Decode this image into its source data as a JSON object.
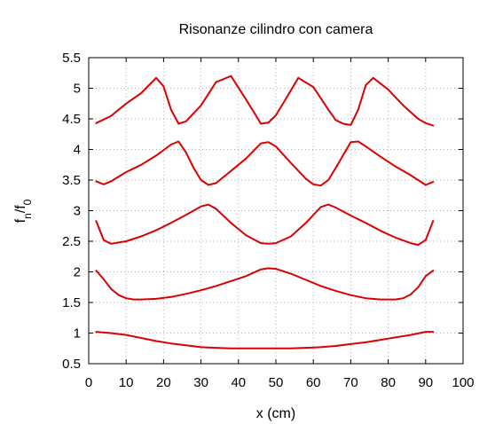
{
  "chart_data": {
    "type": "line",
    "title": "Risonanze cilindro con camera",
    "xlabel": "x (cm)",
    "ylabel": {
      "main": "f",
      "sub_n": "n",
      "sep": "/f",
      "sub_0": "0"
    },
    "xlim": [
      0,
      100
    ],
    "ylim": [
      0.5,
      5.5
    ],
    "xticks": [
      "0",
      "10",
      "20",
      "30",
      "40",
      "50",
      "60",
      "70",
      "80",
      "90",
      "100"
    ],
    "yticks": [
      "0.5",
      "1",
      "1.5",
      "2",
      "2.5",
      "3",
      "3.5",
      "4",
      "4.5",
      "5",
      "5.5"
    ],
    "grid": true,
    "legend": "none",
    "line_color": "#dd0000",
    "series": [
      {
        "x": [
          2,
          6,
          10,
          14,
          18,
          22,
          26,
          30,
          34,
          38,
          42,
          46,
          50,
          54,
          58,
          62,
          66,
          70,
          74,
          78,
          82,
          86,
          90,
          92
        ],
        "y": [
          1.02,
          1.0,
          0.97,
          0.92,
          0.87,
          0.83,
          0.8,
          0.77,
          0.76,
          0.75,
          0.75,
          0.75,
          0.75,
          0.75,
          0.76,
          0.77,
          0.79,
          0.82,
          0.85,
          0.89,
          0.93,
          0.97,
          1.02,
          1.02
        ]
      },
      {
        "x": [
          2,
          4,
          6,
          8,
          10,
          12,
          14,
          18,
          22,
          26,
          30,
          34,
          38,
          42,
          46,
          48,
          50,
          54,
          58,
          62,
          66,
          70,
          74,
          78,
          82,
          84,
          86,
          88,
          90,
          92
        ],
        "y": [
          2.02,
          1.88,
          1.72,
          1.62,
          1.57,
          1.55,
          1.55,
          1.56,
          1.59,
          1.64,
          1.7,
          1.77,
          1.85,
          1.93,
          2.04,
          2.06,
          2.05,
          1.97,
          1.87,
          1.77,
          1.69,
          1.62,
          1.57,
          1.55,
          1.55,
          1.57,
          1.63,
          1.75,
          1.93,
          2.02
        ]
      },
      {
        "x": [
          2,
          4,
          6,
          10,
          14,
          18,
          22,
          26,
          30,
          32,
          34,
          38,
          42,
          46,
          48,
          50,
          54,
          58,
          62,
          64,
          66,
          70,
          74,
          78,
          82,
          86,
          88,
          90,
          92
        ],
        "y": [
          2.83,
          2.52,
          2.46,
          2.5,
          2.58,
          2.68,
          2.8,
          2.93,
          3.07,
          3.1,
          3.03,
          2.8,
          2.6,
          2.47,
          2.46,
          2.47,
          2.58,
          2.8,
          3.06,
          3.1,
          3.05,
          2.92,
          2.8,
          2.67,
          2.56,
          2.47,
          2.44,
          2.52,
          2.83
        ]
      },
      {
        "x": [
          2,
          4,
          6,
          10,
          14,
          18,
          22,
          24,
          26,
          28,
          30,
          32,
          34,
          38,
          42,
          46,
          48,
          50,
          54,
          58,
          60,
          62,
          64,
          66,
          70,
          72,
          74,
          78,
          82,
          86,
          90,
          92
        ],
        "y": [
          3.48,
          3.43,
          3.48,
          3.63,
          3.75,
          3.9,
          4.08,
          4.13,
          3.95,
          3.7,
          3.5,
          3.42,
          3.45,
          3.65,
          3.85,
          4.1,
          4.12,
          4.05,
          3.78,
          3.52,
          3.43,
          3.41,
          3.5,
          3.7,
          4.12,
          4.13,
          4.05,
          3.88,
          3.72,
          3.58,
          3.42,
          3.47
        ]
      },
      {
        "x": [
          2,
          6,
          10,
          14,
          18,
          20,
          22,
          24,
          26,
          30,
          34,
          38,
          42,
          44,
          46,
          48,
          50,
          52,
          56,
          60,
          64,
          66,
          68,
          70,
          72,
          74,
          76,
          80,
          84,
          88,
          90,
          92
        ],
        "y": [
          4.43,
          4.55,
          4.75,
          4.92,
          5.17,
          5.03,
          4.65,
          4.42,
          4.46,
          4.72,
          5.1,
          5.2,
          4.82,
          4.62,
          4.42,
          4.44,
          4.56,
          4.76,
          5.17,
          5.02,
          4.65,
          4.48,
          4.42,
          4.4,
          4.65,
          5.05,
          5.17,
          4.98,
          4.72,
          4.5,
          4.43,
          4.39
        ]
      }
    ]
  }
}
